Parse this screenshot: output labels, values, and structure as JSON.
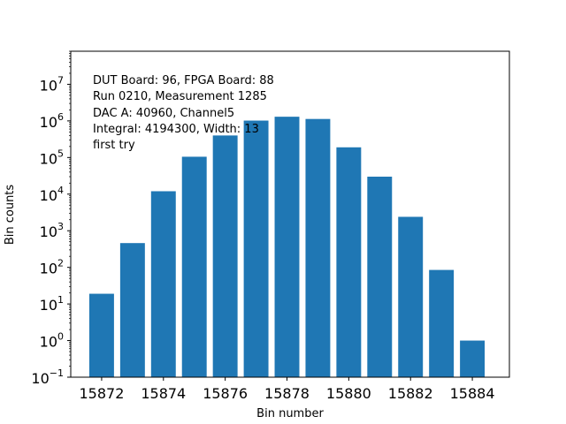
{
  "chart_data": {
    "type": "bar",
    "title": "",
    "xlabel": "Bin number",
    "ylabel": "Bin counts",
    "yscale": "log",
    "ylim": [
      0.1,
      80000000
    ],
    "xlim": [
      15871,
      15885.2
    ],
    "bar_color": "#1f77b4",
    "grid": false,
    "x": [
      15872,
      15873,
      15874,
      15875,
      15876,
      15877,
      15878,
      15879,
      15880,
      15881,
      15882,
      15883,
      15884
    ],
    "values": [
      19,
      460,
      12000,
      105000,
      400000,
      1020000,
      1300000,
      1130000,
      190000,
      30000,
      2400,
      85,
      1
    ],
    "x_ticks": [
      15872,
      15874,
      15876,
      15878,
      15880,
      15882,
      15884
    ],
    "x_tick_labels": [
      "15872",
      "15874",
      "15876",
      "15878",
      "15880",
      "15882",
      "15884"
    ],
    "y_ticks": [
      {
        "base": "10",
        "exp": "−1",
        "value": 0.1
      },
      {
        "base": "10",
        "exp": "0",
        "value": 1
      },
      {
        "base": "10",
        "exp": "1",
        "value": 10
      },
      {
        "base": "10",
        "exp": "2",
        "value": 100
      },
      {
        "base": "10",
        "exp": "3",
        "value": 1000
      },
      {
        "base": "10",
        "exp": "4",
        "value": 10000
      },
      {
        "base": "10",
        "exp": "5",
        "value": 100000
      },
      {
        "base": "10",
        "exp": "6",
        "value": 1000000
      },
      {
        "base": "10",
        "exp": "7",
        "value": 10000000
      }
    ],
    "annotations": [
      "DUT Board: 96, FPGA Board: 88",
      "Run 0210, Measurement 1285",
      "DAC A: 40960, Channel5",
      "Integral: 4194300, Width: 13",
      "first try"
    ]
  }
}
